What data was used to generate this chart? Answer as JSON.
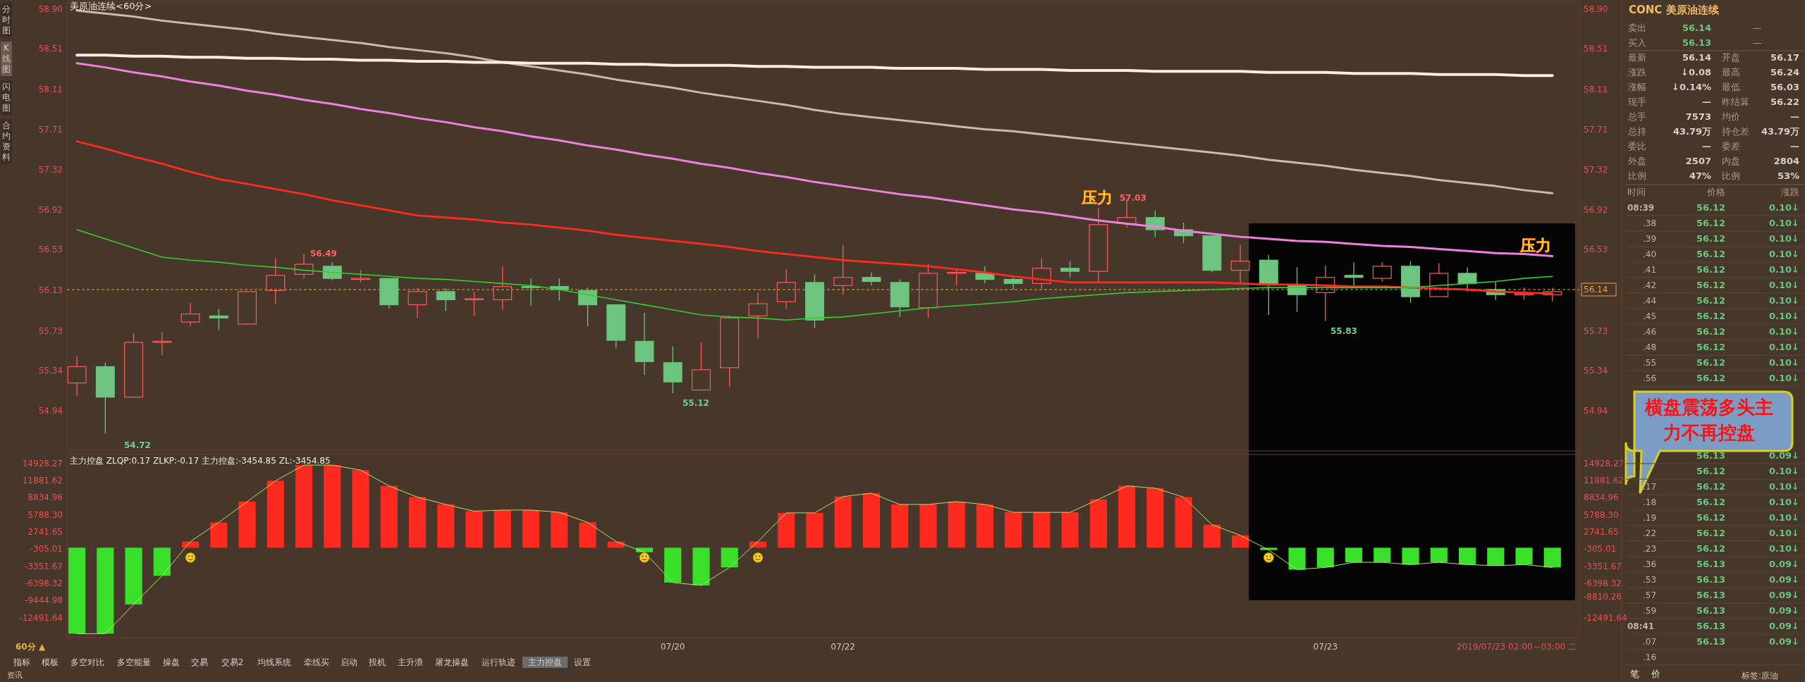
{
  "chart_data": [
    {
      "type": "candlestick",
      "title": "美原油连续<60分>",
      "ylim": [
        54.55,
        58.98
      ],
      "y2lim": [
        54.55,
        58.98
      ],
      "yticks": [
        {
          "value": 58.9,
          "label": "58.90"
        },
        58.51,
        58.11,
        57.71,
        57.32,
        56.92,
        56.53,
        56.13,
        55.73,
        55.34,
        54.94
      ],
      "y2ticks": [
        {
          "value": 58.9,
          "label": "58.90"
        },
        58.51,
        58.11,
        57.71,
        57.32,
        56.92,
        56.53,
        55.73,
        55.34,
        54.94
      ],
      "categories": [
        null,
        null,
        null,
        null,
        null,
        null,
        null,
        null,
        null,
        null,
        null,
        null,
        null,
        null,
        null,
        null,
        null,
        null,
        null,
        null,
        null,
        null,
        null,
        null,
        null,
        null,
        null,
        null,
        null,
        null,
        null,
        null,
        null,
        null,
        null,
        null,
        null,
        null,
        null,
        null,
        null,
        null,
        null,
        null,
        null,
        null,
        null,
        null,
        null,
        null,
        null,
        null,
        null
      ],
      "ohlc": [
        [
          55.22,
          55.48,
          55.09,
          55.38
        ],
        [
          55.38,
          55.42,
          54.72,
          55.08
        ],
        [
          55.08,
          55.71,
          55.08,
          55.62
        ],
        [
          55.62,
          55.72,
          55.49,
          55.63
        ],
        [
          55.82,
          56.01,
          55.78,
          55.9
        ],
        [
          55.88,
          55.95,
          55.74,
          55.86
        ],
        [
          55.8,
          56.12,
          55.8,
          56.12
        ],
        [
          56.13,
          56.45,
          56.0,
          56.28
        ],
        [
          56.29,
          56.49,
          56.25,
          56.39
        ],
        [
          56.37,
          56.41,
          56.23,
          56.25
        ],
        [
          56.24,
          56.33,
          56.21,
          56.25
        ],
        [
          56.25,
          56.26,
          55.95,
          55.99
        ],
        [
          55.99,
          56.16,
          55.86,
          56.12
        ],
        [
          56.12,
          56.15,
          55.93,
          56.04
        ],
        [
          56.04,
          56.12,
          55.88,
          56.05
        ],
        [
          56.04,
          56.37,
          55.94,
          56.17
        ],
        [
          56.17,
          56.25,
          55.98,
          56.16
        ],
        [
          56.17,
          56.25,
          56.03,
          56.14
        ],
        [
          56.13,
          56.16,
          55.78,
          55.99
        ],
        [
          55.99,
          56.0,
          55.56,
          55.64
        ],
        [
          55.63,
          55.91,
          55.3,
          55.43
        ],
        [
          55.42,
          55.58,
          55.12,
          55.23
        ],
        [
          55.15,
          55.62,
          55.15,
          55.35
        ],
        [
          55.37,
          55.88,
          55.18,
          55.86
        ],
        [
          55.88,
          56.11,
          55.66,
          56.0
        ],
        [
          56.02,
          56.34,
          55.95,
          56.21
        ],
        [
          56.21,
          56.29,
          55.76,
          55.84
        ],
        [
          56.18,
          56.58,
          56.09,
          56.26
        ],
        [
          56.26,
          56.31,
          56.18,
          56.22
        ],
        [
          56.21,
          56.24,
          55.87,
          55.97
        ],
        [
          55.96,
          56.39,
          55.86,
          56.3
        ],
        [
          56.3,
          56.34,
          56.18,
          56.31
        ],
        [
          56.3,
          56.37,
          56.2,
          56.24
        ],
        [
          56.24,
          56.26,
          56.14,
          56.2
        ],
        [
          56.2,
          56.45,
          56.15,
          56.35
        ],
        [
          56.35,
          56.42,
          56.26,
          56.32
        ],
        [
          56.32,
          56.94,
          56.21,
          56.78
        ],
        [
          56.79,
          57.03,
          56.75,
          56.85
        ],
        [
          56.85,
          56.92,
          56.66,
          56.73
        ],
        [
          56.73,
          56.8,
          56.6,
          56.67
        ],
        [
          56.67,
          56.68,
          56.31,
          56.33
        ],
        [
          56.33,
          56.58,
          56.21,
          56.42
        ],
        [
          56.43,
          56.48,
          55.89,
          56.19
        ],
        [
          56.18,
          56.36,
          55.92,
          56.09
        ],
        [
          56.11,
          56.38,
          55.83,
          56.26
        ],
        [
          56.28,
          56.41,
          56.18,
          56.26
        ],
        [
          56.25,
          56.41,
          56.22,
          56.37
        ],
        [
          56.37,
          56.42,
          56.01,
          56.07
        ],
        [
          56.07,
          56.4,
          56.06,
          56.3
        ],
        [
          56.3,
          56.36,
          56.12,
          56.2
        ],
        [
          56.14,
          56.22,
          56.04,
          56.09
        ],
        [
          56.09,
          56.16,
          56.04,
          56.1
        ],
        [
          56.09,
          56.16,
          56.02,
          56.12
        ]
      ],
      "series": [
        {
          "type": "line",
          "color": "#cdb9a9",
          "values": [
            58.89,
            58.86,
            58.83,
            58.79,
            58.76,
            58.73,
            58.7,
            58.66,
            58.63,
            58.6,
            58.57,
            58.53,
            58.5,
            58.47,
            58.43,
            58.38,
            58.34,
            58.3,
            58.26,
            58.21,
            58.17,
            58.13,
            58.08,
            58.04,
            58.0,
            57.96,
            57.91,
            57.87,
            57.84,
            57.81,
            57.78,
            57.75,
            57.72,
            57.7,
            57.67,
            57.64,
            57.61,
            57.58,
            57.55,
            57.52,
            57.49,
            57.46,
            57.42,
            57.39,
            57.36,
            57.32,
            57.29,
            57.26,
            57.22,
            57.19,
            57.16,
            57.12,
            57.09
          ]
        },
        {
          "type": "line",
          "color": "#fcefe2",
          "values": [
            58.45,
            58.45,
            58.44,
            58.44,
            58.43,
            58.43,
            58.42,
            58.42,
            58.41,
            58.41,
            58.4,
            58.4,
            58.39,
            58.39,
            58.38,
            58.38,
            58.37,
            58.37,
            58.37,
            58.36,
            58.36,
            58.35,
            58.35,
            58.35,
            58.34,
            58.34,
            58.33,
            58.33,
            58.33,
            58.32,
            58.32,
            58.32,
            58.31,
            58.31,
            58.31,
            58.3,
            58.3,
            58.3,
            58.29,
            58.29,
            58.29,
            58.29,
            58.28,
            58.28,
            58.28,
            58.27,
            58.27,
            58.27,
            58.26,
            58.26,
            58.26,
            58.25,
            58.25
          ]
        },
        {
          "type": "line",
          "color": "#f080e0",
          "values": [
            58.37,
            58.33,
            58.28,
            58.24,
            58.19,
            58.15,
            58.1,
            58.06,
            58.01,
            57.97,
            57.92,
            57.88,
            57.83,
            57.79,
            57.74,
            57.7,
            57.65,
            57.61,
            57.56,
            57.52,
            57.47,
            57.43,
            57.38,
            57.34,
            57.29,
            57.25,
            57.2,
            57.16,
            57.12,
            57.08,
            57.05,
            57.01,
            56.97,
            56.93,
            56.9,
            56.86,
            56.82,
            56.79,
            56.76,
            56.72,
            56.69,
            56.66,
            56.64,
            56.62,
            56.61,
            56.59,
            56.57,
            56.56,
            56.54,
            56.52,
            56.5,
            56.49,
            56.47
          ]
        },
        {
          "type": "line",
          "color": "#ff2a1f",
          "values": [
            57.6,
            57.53,
            57.45,
            57.38,
            57.3,
            57.23,
            57.18,
            57.13,
            57.08,
            57.02,
            56.97,
            56.92,
            56.87,
            56.85,
            56.83,
            56.8,
            56.78,
            56.75,
            56.72,
            56.68,
            56.65,
            56.62,
            56.59,
            56.56,
            56.52,
            56.49,
            56.46,
            56.43,
            56.41,
            56.39,
            56.37,
            56.34,
            56.31,
            56.27,
            56.24,
            56.21,
            56.21,
            56.21,
            56.21,
            56.21,
            56.21,
            56.2,
            56.19,
            56.19,
            56.18,
            56.17,
            56.17,
            56.16,
            56.15,
            56.14,
            56.12,
            56.11,
            56.1
          ]
        },
        {
          "type": "line",
          "color": "#33cc33",
          "values": [
            56.73,
            56.64,
            56.55,
            56.46,
            56.43,
            56.41,
            56.38,
            56.36,
            56.33,
            56.31,
            56.29,
            56.27,
            56.25,
            56.24,
            56.22,
            56.2,
            56.18,
            56.14,
            56.09,
            56.04,
            55.99,
            55.94,
            55.89,
            55.87,
            55.86,
            55.84,
            55.86,
            55.87,
            55.9,
            55.93,
            55.96,
            55.98,
            56.0,
            56.02,
            56.05,
            56.07,
            56.09,
            56.11,
            56.12,
            56.13,
            56.14,
            56.15,
            56.16,
            56.16,
            56.16,
            56.16,
            56.16,
            56.16,
            56.18,
            56.2,
            56.22,
            56.25,
            56.27
          ]
        }
      ],
      "ref_lines": [
        {
          "axis": "y2",
          "value": 56.14,
          "label": "56.14",
          "color": "#e8a040",
          "line_style": "dashed"
        }
      ],
      "annotations": [
        "56.49",
        "54.72",
        "55.12",
        "57.03",
        "55.83",
        "压力",
        "压力",
        "横盘震荡多头主力不再控盘"
      ]
    },
    {
      "type": "bar",
      "title": "主力控盘 ZLQP:0.17 ZLKP:-0.17 主力控盘:-3454.85 ZL:-3454.85",
      "ylim": [
        -16000,
        16600
      ],
      "y2lim": [
        -16000,
        16600
      ],
      "yticks": [
        14928.27,
        11881.62,
        8834.96,
        {
          "value": 5788.3,
          "label": "5788.30"
        },
        2741.65,
        -305.01,
        -3351.67,
        -6398.32,
        -9444.98,
        -12491.64
      ],
      "y2ticks": [
        14928.27,
        11881.62,
        8834.96,
        {
          "value": 5788.3,
          "label": "5788.30"
        },
        2741.65,
        -305.01,
        -3351.67,
        -6398.32,
        -8810.26,
        -12491.64
      ],
      "categories": [
        null,
        null,
        null,
        null,
        null,
        null,
        null,
        null,
        null,
        null,
        null,
        null,
        null,
        null,
        null,
        null,
        null,
        null,
        null,
        null,
        null,
        "07/20",
        null,
        null,
        null,
        null,
        null,
        "07/22",
        null,
        null,
        null,
        null,
        null,
        null,
        null,
        null,
        null,
        null,
        null,
        null,
        null,
        null,
        null,
        null,
        "07/23",
        null,
        null,
        null,
        null,
        null,
        null,
        null,
        null
      ],
      "series": [
        {
          "type": "bar",
          "values": [
            -15300,
            -15300,
            -10100,
            -5000,
            1100,
            4500,
            8200,
            11900,
            14700,
            14700,
            13800,
            11000,
            9000,
            7700,
            6500,
            6700,
            6700,
            6300,
            4500,
            1100,
            -800,
            -6200,
            -6700,
            -3500,
            1100,
            6200,
            6200,
            9100,
            9700,
            7700,
            7700,
            8200,
            7700,
            6300,
            6300,
            6300,
            8600,
            11000,
            10600,
            9000,
            4100,
            2200,
            -400,
            -3900,
            -3500,
            -2600,
            -2600,
            -3000,
            -2600,
            -3000,
            -3200,
            -3000,
            -3500
          ],
          "colors": [
            "#39e02a",
            "#39e02a",
            "#39e02a",
            "#39e02a",
            "#ff2a1f",
            "#ff2a1f",
            "#ff2a1f",
            "#ff2a1f",
            "#ff2a1f",
            "#ff2a1f",
            "#ff2a1f",
            "#ff2a1f",
            "#ff2a1f",
            "#ff2a1f",
            "#ff2a1f",
            "#ff2a1f",
            "#ff2a1f",
            "#ff2a1f",
            "#ff2a1f",
            "#ff2a1f",
            "#39e02a",
            "#39e02a",
            "#39e02a",
            "#39e02a",
            "#ff2a1f",
            "#ff2a1f",
            "#ff2a1f",
            "#ff2a1f",
            "#ff2a1f",
            "#ff2a1f",
            "#ff2a1f",
            "#ff2a1f",
            "#ff2a1f",
            "#ff2a1f",
            "#ff2a1f",
            "#ff2a1f",
            "#ff2a1f",
            "#ff2a1f",
            "#ff2a1f",
            "#ff2a1f",
            "#ff2a1f",
            "#ff2a1f",
            "#39e02a",
            "#39e02a",
            "#39e02a",
            "#39e02a",
            "#39e02a",
            "#39e02a",
            "#39e02a",
            "#39e02a",
            "#39e02a",
            "#39e02a",
            "#39e02a"
          ]
        },
        {
          "type": "line",
          "color": "#b8e070",
          "values": [
            -15300,
            -15300,
            -10100,
            -5000,
            1100,
            4500,
            8200,
            11900,
            14700,
            14700,
            13800,
            11000,
            9000,
            7700,
            6500,
            6700,
            6700,
            6300,
            4500,
            1100,
            -800,
            -6200,
            -6700,
            -3500,
            1100,
            6200,
            6200,
            9100,
            9700,
            7700,
            7700,
            8200,
            7700,
            6300,
            6300,
            6300,
            8600,
            11000,
            10600,
            9000,
            4100,
            2200,
            -400,
            -3900,
            -3500,
            -2600,
            -2600,
            -3000,
            -2600,
            -3000,
            -3200,
            -3000,
            -3500
          ]
        }
      ],
      "annotations": [
        "60分 ▲",
        "2019/07/23 02:00～03:00 二"
      ]
    },
    {
      "type": "other",
      "title": "CONC 美原油连续",
      "annotations": [
        "卖出 56.14 —",
        "买入 56.13 —",
        "最新 56.14 开盘 56.17",
        "涨跌 ↓0.08 最高 56.24",
        "涨幅 ↓0.14% 最低 56.03",
        "现手 — 昨结算 56.22",
        "总手 7573 均价 —",
        "总持 43.79万 持仓差 43.79万",
        "委比 — 委差 —",
        "外盘 2507 内盘 2804",
        "比例 47% 比例 53%"
      ]
    },
    {
      "type": "other",
      "annotations": [
        "时间 价格 涨跌",
        "08:39 56.12 0.10↓",
        ".38 56.12 0.10↓",
        ".39 56.12 0.10↓",
        ".40 56.12 0.10↓",
        ".41 56.12 0.10↓",
        ".42 56.12 0.10↓",
        ".44 56.12 0.10↓",
        ".45 56.12 0.10↓",
        ".46 56.12 0.10↓",
        ".48 56.12 0.10↓",
        ".55 56.12 0.10↓",
        ".56 56.12 0.10↓",
        "56.13 0.09↓",
        "56.12 0.10↓",
        ".17 56.12 0.10↓",
        ".18 56.12 0.10↓",
        ".19 56.12 0.10↓",
        ".22 56.12 0.10↓",
        ".23 56.12 0.10↓",
        ".36 56.13 0.09↓",
        ".53 56.13 0.09↓",
        ".57 56.13 0.09↓",
        ".59 56.13 0.09↓",
        "08:41 56.13 0.09↓",
        ".07 56.13 0.09↓",
        ".16",
        "笔 价"
      ]
    },
    {
      "type": "other",
      "annotations": [
        "分时图",
        "K线图",
        "闪电图",
        "合约资料",
        "指标",
        "模板",
        "多空对比",
        "多空能量",
        "操盘",
        "交易",
        "交易2",
        "均线系统",
        "牵线买",
        "启动",
        "投机",
        "主升浪",
        "屠龙操盘",
        "运行轨迹",
        "主力控盘",
        "设置",
        "资讯",
        "标签:原油"
      ]
    }
  ]
}
